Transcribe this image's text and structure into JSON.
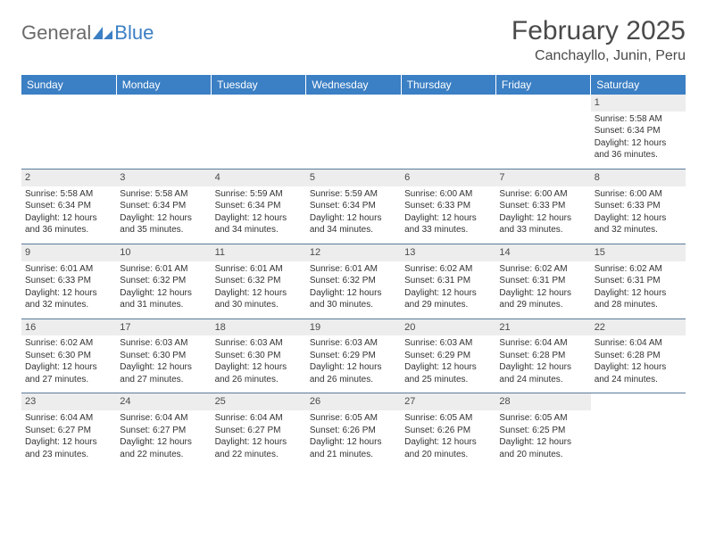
{
  "logo": {
    "text1": "General",
    "text2": "Blue"
  },
  "title": "February 2025",
  "location": "Canchayllo, Junin, Peru",
  "colors": {
    "header_bg": "#3b7fc4",
    "header_text": "#ffffff",
    "daynum_bg": "#ededed",
    "border": "#5a7a9a",
    "text": "#333333"
  },
  "weekdays": [
    "Sunday",
    "Monday",
    "Tuesday",
    "Wednesday",
    "Thursday",
    "Friday",
    "Saturday"
  ],
  "weeks": [
    [
      null,
      null,
      null,
      null,
      null,
      null,
      {
        "n": "1",
        "sr": "Sunrise: 5:58 AM",
        "ss": "Sunset: 6:34 PM",
        "dl1": "Daylight: 12 hours",
        "dl2": "and 36 minutes."
      }
    ],
    [
      {
        "n": "2",
        "sr": "Sunrise: 5:58 AM",
        "ss": "Sunset: 6:34 PM",
        "dl1": "Daylight: 12 hours",
        "dl2": "and 36 minutes."
      },
      {
        "n": "3",
        "sr": "Sunrise: 5:58 AM",
        "ss": "Sunset: 6:34 PM",
        "dl1": "Daylight: 12 hours",
        "dl2": "and 35 minutes."
      },
      {
        "n": "4",
        "sr": "Sunrise: 5:59 AM",
        "ss": "Sunset: 6:34 PM",
        "dl1": "Daylight: 12 hours",
        "dl2": "and 34 minutes."
      },
      {
        "n": "5",
        "sr": "Sunrise: 5:59 AM",
        "ss": "Sunset: 6:34 PM",
        "dl1": "Daylight: 12 hours",
        "dl2": "and 34 minutes."
      },
      {
        "n": "6",
        "sr": "Sunrise: 6:00 AM",
        "ss": "Sunset: 6:33 PM",
        "dl1": "Daylight: 12 hours",
        "dl2": "and 33 minutes."
      },
      {
        "n": "7",
        "sr": "Sunrise: 6:00 AM",
        "ss": "Sunset: 6:33 PM",
        "dl1": "Daylight: 12 hours",
        "dl2": "and 33 minutes."
      },
      {
        "n": "8",
        "sr": "Sunrise: 6:00 AM",
        "ss": "Sunset: 6:33 PM",
        "dl1": "Daylight: 12 hours",
        "dl2": "and 32 minutes."
      }
    ],
    [
      {
        "n": "9",
        "sr": "Sunrise: 6:01 AM",
        "ss": "Sunset: 6:33 PM",
        "dl1": "Daylight: 12 hours",
        "dl2": "and 32 minutes."
      },
      {
        "n": "10",
        "sr": "Sunrise: 6:01 AM",
        "ss": "Sunset: 6:32 PM",
        "dl1": "Daylight: 12 hours",
        "dl2": "and 31 minutes."
      },
      {
        "n": "11",
        "sr": "Sunrise: 6:01 AM",
        "ss": "Sunset: 6:32 PM",
        "dl1": "Daylight: 12 hours",
        "dl2": "and 30 minutes."
      },
      {
        "n": "12",
        "sr": "Sunrise: 6:01 AM",
        "ss": "Sunset: 6:32 PM",
        "dl1": "Daylight: 12 hours",
        "dl2": "and 30 minutes."
      },
      {
        "n": "13",
        "sr": "Sunrise: 6:02 AM",
        "ss": "Sunset: 6:31 PM",
        "dl1": "Daylight: 12 hours",
        "dl2": "and 29 minutes."
      },
      {
        "n": "14",
        "sr": "Sunrise: 6:02 AM",
        "ss": "Sunset: 6:31 PM",
        "dl1": "Daylight: 12 hours",
        "dl2": "and 29 minutes."
      },
      {
        "n": "15",
        "sr": "Sunrise: 6:02 AM",
        "ss": "Sunset: 6:31 PM",
        "dl1": "Daylight: 12 hours",
        "dl2": "and 28 minutes."
      }
    ],
    [
      {
        "n": "16",
        "sr": "Sunrise: 6:02 AM",
        "ss": "Sunset: 6:30 PM",
        "dl1": "Daylight: 12 hours",
        "dl2": "and 27 minutes."
      },
      {
        "n": "17",
        "sr": "Sunrise: 6:03 AM",
        "ss": "Sunset: 6:30 PM",
        "dl1": "Daylight: 12 hours",
        "dl2": "and 27 minutes."
      },
      {
        "n": "18",
        "sr": "Sunrise: 6:03 AM",
        "ss": "Sunset: 6:30 PM",
        "dl1": "Daylight: 12 hours",
        "dl2": "and 26 minutes."
      },
      {
        "n": "19",
        "sr": "Sunrise: 6:03 AM",
        "ss": "Sunset: 6:29 PM",
        "dl1": "Daylight: 12 hours",
        "dl2": "and 26 minutes."
      },
      {
        "n": "20",
        "sr": "Sunrise: 6:03 AM",
        "ss": "Sunset: 6:29 PM",
        "dl1": "Daylight: 12 hours",
        "dl2": "and 25 minutes."
      },
      {
        "n": "21",
        "sr": "Sunrise: 6:04 AM",
        "ss": "Sunset: 6:28 PM",
        "dl1": "Daylight: 12 hours",
        "dl2": "and 24 minutes."
      },
      {
        "n": "22",
        "sr": "Sunrise: 6:04 AM",
        "ss": "Sunset: 6:28 PM",
        "dl1": "Daylight: 12 hours",
        "dl2": "and 24 minutes."
      }
    ],
    [
      {
        "n": "23",
        "sr": "Sunrise: 6:04 AM",
        "ss": "Sunset: 6:27 PM",
        "dl1": "Daylight: 12 hours",
        "dl2": "and 23 minutes."
      },
      {
        "n": "24",
        "sr": "Sunrise: 6:04 AM",
        "ss": "Sunset: 6:27 PM",
        "dl1": "Daylight: 12 hours",
        "dl2": "and 22 minutes."
      },
      {
        "n": "25",
        "sr": "Sunrise: 6:04 AM",
        "ss": "Sunset: 6:27 PM",
        "dl1": "Daylight: 12 hours",
        "dl2": "and 22 minutes."
      },
      {
        "n": "26",
        "sr": "Sunrise: 6:05 AM",
        "ss": "Sunset: 6:26 PM",
        "dl1": "Daylight: 12 hours",
        "dl2": "and 21 minutes."
      },
      {
        "n": "27",
        "sr": "Sunrise: 6:05 AM",
        "ss": "Sunset: 6:26 PM",
        "dl1": "Daylight: 12 hours",
        "dl2": "and 20 minutes."
      },
      {
        "n": "28",
        "sr": "Sunrise: 6:05 AM",
        "ss": "Sunset: 6:25 PM",
        "dl1": "Daylight: 12 hours",
        "dl2": "and 20 minutes."
      },
      null
    ]
  ]
}
